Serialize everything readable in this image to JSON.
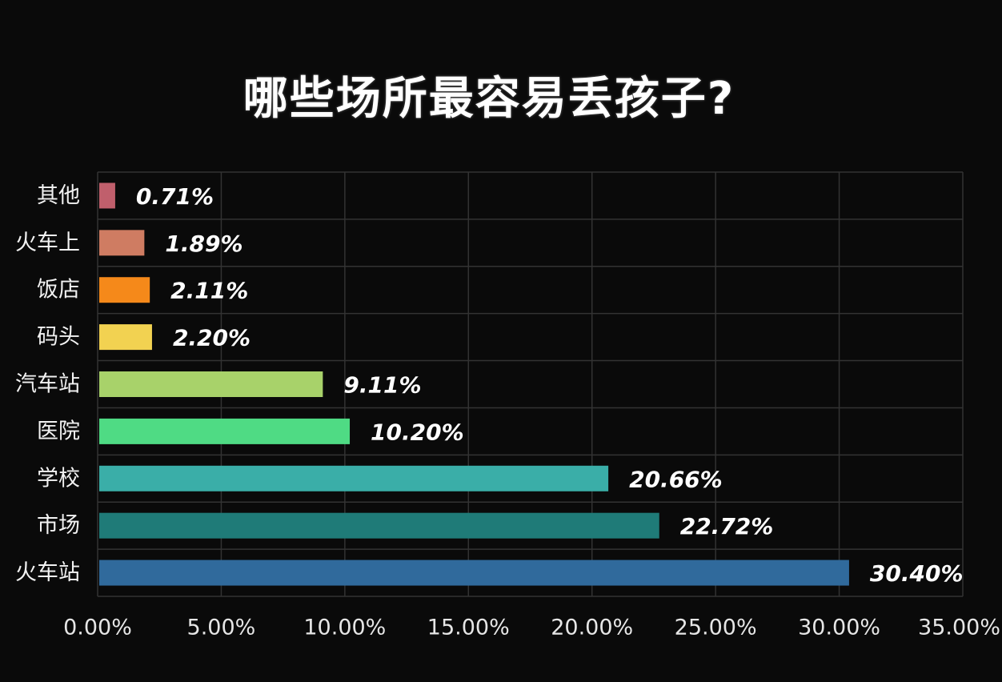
{
  "chart_data": {
    "type": "bar",
    "orientation": "horizontal",
    "title": "哪些场所最容易丢孩子?",
    "categories": [
      "其他",
      "火车上",
      "饭店",
      "码头",
      "汽车站",
      "医院",
      "学校",
      "市场",
      "火车站"
    ],
    "values": [
      0.71,
      1.89,
      2.11,
      2.2,
      9.11,
      10.2,
      20.66,
      22.72,
      30.4
    ],
    "value_labels": [
      "0.71%",
      "1.89%",
      "2.11%",
      "2.20%",
      "9.11%",
      "10.20%",
      "20.66%",
      "22.72%",
      "30.40%"
    ],
    "colors": [
      "#c05f6c",
      "#cf7c62",
      "#f5891a",
      "#f2d251",
      "#a8d26a",
      "#4fdb84",
      "#3aaea8",
      "#1f7b78",
      "#306a9c"
    ],
    "xlim": [
      0,
      35
    ],
    "xticks": [
      0,
      5,
      10,
      15,
      20,
      25,
      30,
      35
    ],
    "xtick_labels": [
      "0.00%",
      "5.00%",
      "10.00%",
      "15.00%",
      "20.00%",
      "25.00%",
      "30.00%",
      "35.00%"
    ],
    "xlabel": "",
    "ylabel": "",
    "grid": true,
    "legend": "none"
  }
}
